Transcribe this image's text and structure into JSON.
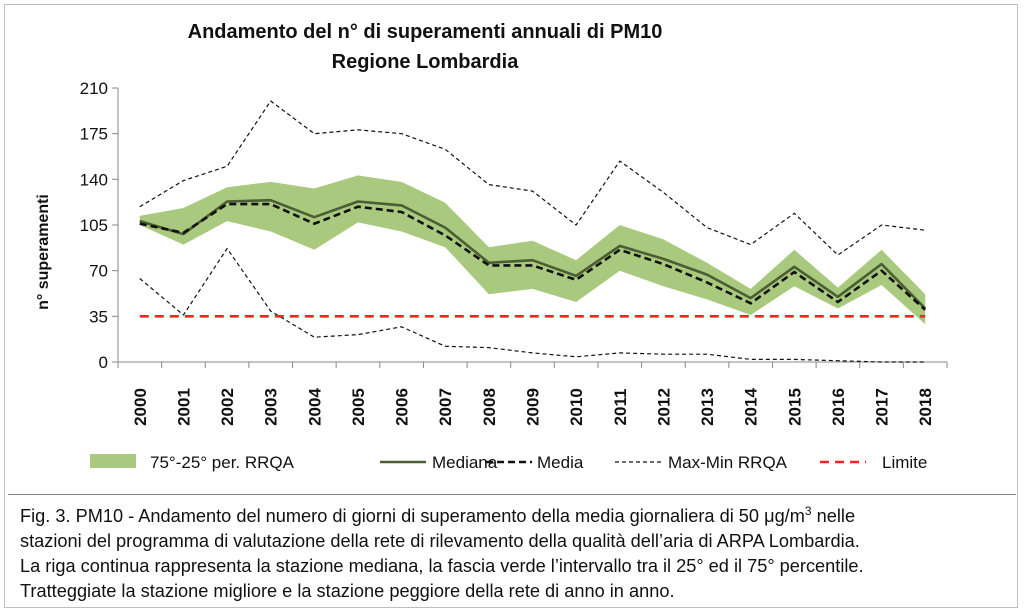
{
  "chart_data": {
    "type": "line",
    "title": [
      "Andamento del n° di superamenti annuali di PM10",
      "Regione Lombardia"
    ],
    "xlabel": "",
    "ylabel": "n° superamenti",
    "ylim": [
      0,
      210
    ],
    "yticks": [
      0,
      35,
      70,
      105,
      140,
      175,
      210
    ],
    "categories": [
      "2000",
      "2001",
      "2002",
      "2003",
      "2004",
      "2005",
      "2006",
      "2007",
      "2008",
      "2009",
      "2010",
      "2011",
      "2012",
      "2013",
      "2014",
      "2015",
      "2016",
      "2017",
      "2018"
    ],
    "band": {
      "name": "75°-25° per. RRQA",
      "color": "#a9c97e",
      "upper": [
        112,
        118,
        134,
        138,
        133,
        143,
        138,
        122,
        88,
        93,
        78,
        105,
        94,
        76,
        56,
        86,
        57,
        86,
        52
      ],
      "lower": [
        105,
        90,
        108,
        100,
        86,
        107,
        100,
        88,
        52,
        56,
        46,
        70,
        58,
        48,
        36,
        58,
        41,
        59,
        29
      ]
    },
    "series": [
      {
        "name": "Mediana",
        "style": "solid",
        "color": "#4b5e33",
        "values": [
          108,
          98,
          123,
          124,
          111,
          123,
          120,
          103,
          76,
          78,
          66,
          89,
          79,
          67,
          49,
          73,
          50,
          75,
          41
        ]
      },
      {
        "name": "Media",
        "style": "dashed-thick",
        "color": "#111111",
        "values": [
          106,
          99,
          121,
          121,
          106,
          119,
          115,
          97,
          74,
          74,
          63,
          86,
          75,
          61,
          45,
          69,
          46,
          70,
          40
        ]
      },
      {
        "name": "Max-Min RRQA",
        "style": "dashed-thin",
        "color": "#111111",
        "upper": [
          119,
          139,
          150,
          200,
          175,
          178,
          175,
          163,
          136,
          131,
          105,
          154,
          130,
          103,
          90,
          114,
          82,
          105,
          101
        ],
        "lower": [
          64,
          36,
          87,
          39,
          19,
          21,
          27,
          12,
          11,
          7,
          4,
          7,
          6,
          6,
          2,
          2,
          1,
          0,
          0
        ]
      },
      {
        "name": "Limite",
        "style": "dashed-red",
        "color": "#ff2020",
        "values": [
          35,
          35,
          35,
          35,
          35,
          35,
          35,
          35,
          35,
          35,
          35,
          35,
          35,
          35,
          35,
          35,
          35,
          35,
          35
        ]
      }
    ],
    "legend": {
      "position": "bottom",
      "items": [
        "75°-25° per. RRQA",
        "Mediana",
        "Media",
        "Max-Min RRQA",
        "Limite"
      ]
    },
    "grid": false
  },
  "caption": {
    "line1_pre": "Fig. 3. PM10 - Andamento del numero di giorni di superamento della media giornaliera di 50 μg/m",
    "line1_sup": "3",
    "line1_post": " nelle",
    "line2": "stazioni del programma di valutazione della rete di rilevamento della qualità dell’aria di ARPA Lombardia.",
    "line3": "La riga continua rappresenta la stazione mediana, la fascia verde l’intervallo tra il 25° ed il 75° percentile.",
    "line4": "Tratteggiate la stazione migliore e la stazione peggiore della rete di anno in anno."
  }
}
